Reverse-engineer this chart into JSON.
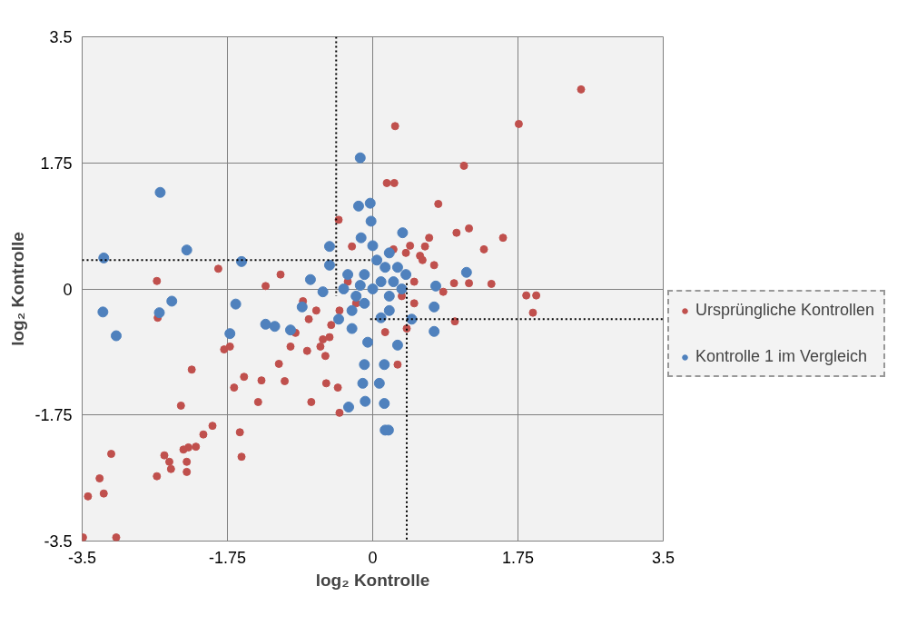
{
  "chart_data": {
    "type": "scatter",
    "xlabel": "log₂ Kontrolle",
    "ylabel": "log₂ Kontrolle",
    "xlim": [
      -3.5,
      3.5
    ],
    "ylim": [
      -3.5,
      3.5
    ],
    "xticks": [
      -3.5,
      -1.75,
      0,
      1.75,
      3.5
    ],
    "yticks": [
      -3.5,
      -1.75,
      0,
      1.75,
      3.5
    ],
    "grid": true,
    "legend": "right",
    "marker": "circle",
    "series": [
      {
        "name": "Ursprüngliche Kontrollen",
        "color": "#c0504d",
        "x": [
          2.51,
          1.76,
          0.27,
          1.1,
          0.17,
          0.26,
          0.79,
          1.16,
          1.01,
          1.57,
          1.34,
          1.43,
          1.85,
          1.97,
          1.93,
          0.99,
          0.98,
          1.16,
          -2.6,
          -2.59,
          -1.86,
          -1.29,
          -1.11,
          -1.79,
          -1.72,
          -2.18,
          -2.31,
          -1.67,
          -1.55,
          -1.34,
          -1.93,
          -2.04,
          -2.22,
          -2.28,
          -2.51,
          -2.45,
          -2.43,
          -2.24,
          -2.24,
          -2.13,
          -2.6,
          -1.58,
          -1.6,
          -3.15,
          -3.29,
          -3.24,
          -3.43,
          -3.49,
          -3.09,
          -1.38,
          -1.13,
          -1.06,
          -0.74,
          -0.56,
          -0.42,
          -0.4,
          -0.99,
          -0.93,
          -0.77,
          -0.63,
          -0.79,
          -0.57,
          -0.84,
          -0.68,
          -0.52,
          -0.41,
          -0.25,
          0.63,
          0.74,
          0.68,
          0.57,
          0.85,
          0.41,
          0.3,
          -0.2,
          0.4,
          0.5,
          -0.4,
          0.35,
          -0.3,
          0.6,
          0.45,
          0.25,
          -0.5,
          -0.6,
          0.15,
          0.5
        ],
        "values": [
          2.77,
          2.29,
          2.26,
          1.71,
          1.47,
          1.47,
          1.18,
          0.84,
          0.78,
          0.71,
          0.55,
          0.07,
          -0.09,
          -0.09,
          -0.33,
          -0.45,
          0.08,
          0.08,
          0.11,
          -0.4,
          0.28,
          0.04,
          0.2,
          -0.84,
          -0.8,
          -1.12,
          -1.62,
          -1.37,
          -1.22,
          -1.27,
          -1.9,
          -2.02,
          -2.2,
          -2.23,
          -2.31,
          -2.4,
          -2.5,
          -2.54,
          -2.4,
          -2.19,
          -2.6,
          -2.33,
          -1.99,
          -2.29,
          -2.63,
          -2.84,
          -2.88,
          -3.45,
          -3.45,
          -1.57,
          -1.04,
          -1.28,
          -1.57,
          -1.31,
          -1.37,
          -1.72,
          -0.8,
          -0.61,
          -0.42,
          -0.8,
          -0.86,
          -0.93,
          -0.17,
          -0.3,
          -0.67,
          0.96,
          0.59,
          0.59,
          0.33,
          0.71,
          0.46,
          -0.04,
          -0.55,
          -1.05,
          -0.2,
          0.5,
          0.1,
          -0.3,
          -0.1,
          0.1,
          0.4,
          0.6,
          0.55,
          -0.5,
          -0.7,
          -0.6,
          -0.2
        ]
      },
      {
        "name": "Kontrolle 1 im Vergleich",
        "color": "#4f81bd",
        "x": [
          -0.15,
          -2.56,
          -2.24,
          -3.24,
          -1.58,
          -3.25,
          -3.09,
          -2.57,
          -2.42,
          -1.65,
          -1.72,
          -1.29,
          -1.18,
          -0.99,
          -0.85,
          -0.75,
          -0.6,
          -0.52,
          -0.52,
          -0.17,
          -0.03,
          -0.02,
          -0.14,
          0.36,
          1.13,
          0.76,
          0.74,
          0.74,
          0.47,
          0.3,
          -0.1,
          0.14,
          -0.12,
          0.08,
          -0.09,
          0.14,
          -0.29,
          0.15,
          0.19,
          -0.06,
          -0.25,
          -0.41,
          0,
          0.1,
          -0.1,
          0.2,
          -0.2,
          0.05,
          0.15,
          0.25,
          -0.15,
          0.3,
          0.1,
          -0.3,
          0,
          0.2,
          -0.1,
          0.35,
          -0.25,
          0.2,
          0.4,
          -0.35
        ],
        "values": [
          1.82,
          1.34,
          0.54,
          0.43,
          0.38,
          -0.32,
          -0.65,
          -0.33,
          -0.17,
          -0.21,
          -0.62,
          -0.49,
          -0.52,
          -0.57,
          -0.25,
          0.13,
          -0.04,
          0.33,
          0.59,
          1.15,
          1.19,
          0.94,
          0.71,
          0.78,
          0.23,
          0.04,
          -0.25,
          -0.59,
          -0.42,
          -0.78,
          -1.05,
          -1.05,
          -1.31,
          -1.31,
          -1.56,
          -1.59,
          -1.64,
          -1.96,
          -1.96,
          -0.74,
          -0.55,
          -0.42,
          0,
          0.1,
          0.2,
          -0.1,
          -0.1,
          0.4,
          0.3,
          0.1,
          0.05,
          0.3,
          -0.4,
          0.2,
          0.6,
          0.5,
          -0.2,
          0.0,
          -0.3,
          -0.3,
          0.2,
          0.0
        ]
      },
      {
        "type": "line",
        "color": "#000000",
        "line_style": "dotted",
        "marker": "none",
        "x": [
          -0.44,
          -0.44
        ],
        "values": [
          3.5,
          -0.1
        ]
      },
      {
        "type": "line",
        "color": "#000000",
        "line_style": "dotted",
        "marker": "none",
        "x": [
          -3.5,
          -0.03
        ],
        "values": [
          0.4,
          0.4
        ]
      },
      {
        "type": "line",
        "color": "#000000",
        "line_style": "dotted",
        "marker": "none",
        "x": [
          0.41,
          0.41
        ],
        "values": [
          0.08,
          -3.5
        ]
      },
      {
        "type": "line",
        "color": "#000000",
        "line_style": "dotted",
        "marker": "none",
        "x": [
          -0.03,
          3.5
        ],
        "values": [
          -0.42,
          -0.42
        ]
      }
    ]
  }
}
